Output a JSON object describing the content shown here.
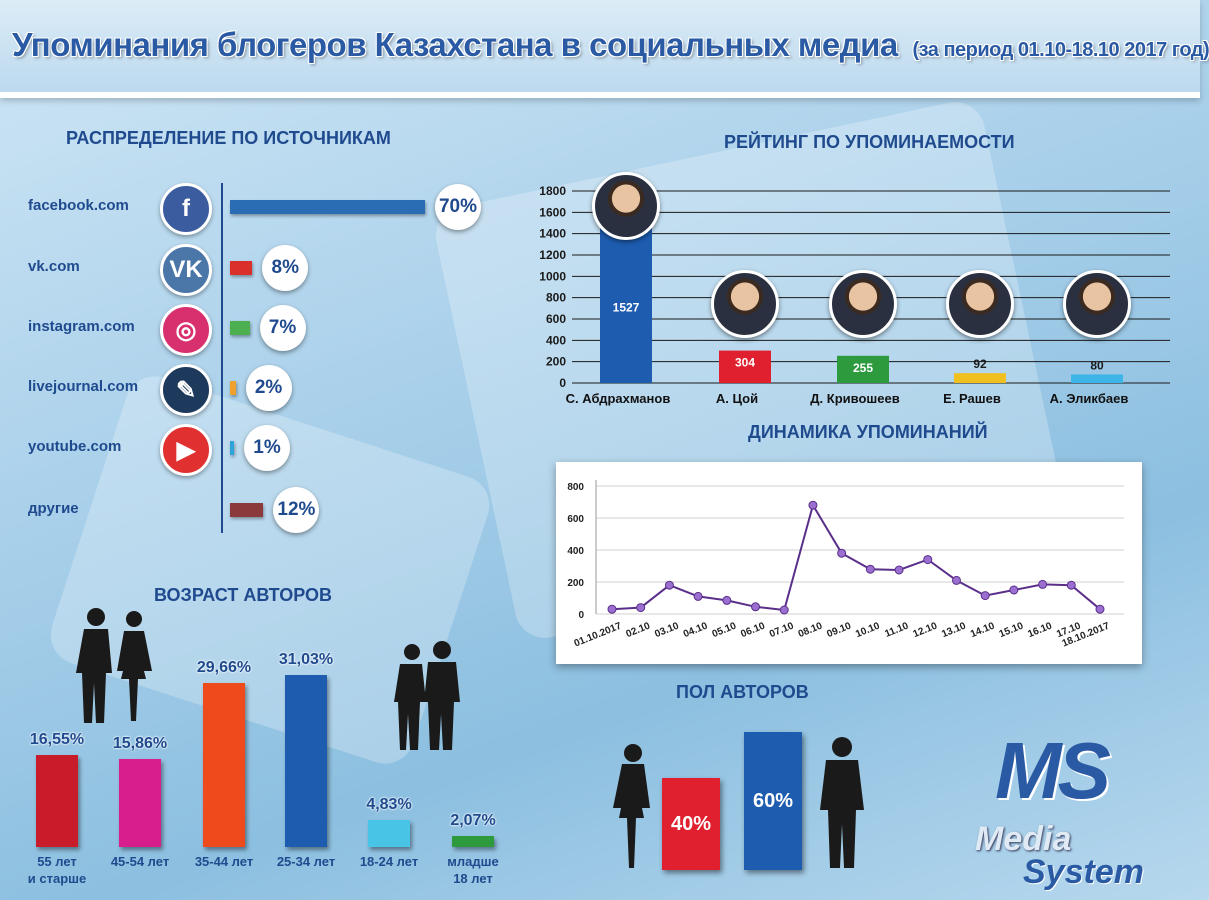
{
  "header": {
    "title": "Упоминания блогеров Казахстана в социальных медиа",
    "subtitle": "(за период 01.10-18.10  2017 год)"
  },
  "sources": {
    "title": "РАСПРЕДЕЛЕНИЕ ПО ИСТОЧНИКАМ",
    "items": [
      {
        "label": "facebook.com",
        "value": 70,
        "pct_text": "70%",
        "color": "#2a6db5",
        "icon": "facebook-icon",
        "icon_glyph": "f",
        "icon_color": "#3b5c9e"
      },
      {
        "label": "vk.com",
        "value": 8,
        "pct_text": "8%",
        "color": "#d9302c",
        "icon": "vk-icon",
        "icon_glyph": "VK",
        "icon_color": "#4a76a8"
      },
      {
        "label": "instagram.com",
        "value": 7,
        "pct_text": "7%",
        "color": "#4caf50",
        "icon": "instagram-icon",
        "icon_glyph": "◎",
        "icon_color": "#d8306e"
      },
      {
        "label": "livejournal.com",
        "value": 2,
        "pct_text": "2%",
        "color": "#f0a02c",
        "icon": "livejournal-icon",
        "icon_glyph": "✎",
        "icon_color": "#1d3a5c"
      },
      {
        "label": "youtube.com",
        "value": 1,
        "pct_text": "1%",
        "color": "#2ea3dc",
        "icon": "youtube-icon",
        "icon_glyph": "▶",
        "icon_color": "#e03030"
      },
      {
        "label": "другие",
        "value": 12,
        "pct_text": "12%",
        "color": "#8a3a3a",
        "icon": "",
        "icon_glyph": "",
        "icon_color": ""
      }
    ]
  },
  "chart_data": [
    {
      "type": "bar",
      "title": "РЕЙТИНГ ПО УПОМИНАЕМОСТИ",
      "categories": [
        "С. Абдрахманов",
        "А. Цой",
        "Д. Кривошеев",
        "Е. Рашев",
        "А. Эликбаев"
      ],
      "values": [
        1527,
        304,
        255,
        92,
        80
      ],
      "colors": [
        "#1e5cb0",
        "#e0202e",
        "#2e9a3e",
        "#f0c020",
        "#3cb4e8"
      ],
      "yticks": [
        0,
        200,
        400,
        600,
        800,
        1000,
        1200,
        1400,
        1600,
        1800
      ],
      "ylim": [
        0,
        1800
      ],
      "grid": true
    },
    {
      "type": "line",
      "title": "ДИНАМИКА УПОМИНАНИЙ",
      "x": [
        "01.10.2017",
        "02.10",
        "03.10",
        "04.10",
        "05.10",
        "06.10",
        "07.10",
        "08.10",
        "09.10",
        "10.10",
        "11.10",
        "12.10",
        "13.10",
        "14.10",
        "15.10",
        "16.10",
        "17.10",
        "18.10.2017"
      ],
      "values": [
        30,
        40,
        180,
        110,
        85,
        45,
        25,
        680,
        380,
        280,
        275,
        340,
        210,
        115,
        150,
        185,
        180,
        30
      ],
      "yticks": [
        0,
        200,
        400,
        600,
        800
      ],
      "ylim": [
        0,
        800
      ],
      "color": "#5a2f8a",
      "grid": true
    },
    {
      "type": "bar",
      "title": "ВОЗРАСТ АВТОРОВ",
      "categories": [
        "55 лет и старше",
        "45-54 лет",
        "35-44 лет",
        "25-34 лет",
        "18-24 лет",
        "младше 18 лет"
      ],
      "category_lines": [
        [
          "55 лет",
          "и старше"
        ],
        [
          "45-54 лет",
          ""
        ],
        [
          "35-44 лет",
          ""
        ],
        [
          "25-34 лет",
          ""
        ],
        [
          "18-24 лет",
          ""
        ],
        [
          "младше",
          "18 лет"
        ]
      ],
      "values": [
        16.55,
        15.86,
        29.66,
        31.03,
        4.83,
        2.07
      ],
      "labels": [
        "16,55%",
        "15,86%",
        "29,66%",
        "31,03%",
        "4,83%",
        "2,07%"
      ],
      "colors": [
        "#c81c2a",
        "#d81e8c",
        "#ee4a1c",
        "#1e5cb0",
        "#48c4e6",
        "#2e9a3e"
      ]
    },
    {
      "type": "bar",
      "title": "ПОЛ АВТОРОВ",
      "categories": [
        "female",
        "male"
      ],
      "values": [
        40,
        60
      ],
      "labels": [
        "40%",
        "60%"
      ],
      "colors": [
        "#e0202e",
        "#1e5cb0"
      ]
    }
  ],
  "logo": {
    "ms": "MS",
    "media": "Media",
    "system": "System"
  }
}
